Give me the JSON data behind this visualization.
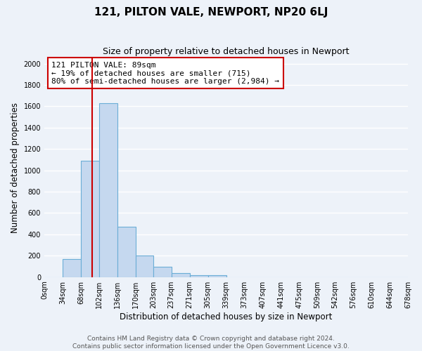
{
  "title": "121, PILTON VALE, NEWPORT, NP20 6LJ",
  "subtitle": "Size of property relative to detached houses in Newport",
  "xlabel": "Distribution of detached houses by size in Newport",
  "ylabel": "Number of detached properties",
  "bar_edges": [
    0,
    34,
    68,
    102,
    136,
    170,
    203,
    237,
    271,
    305,
    339,
    373,
    407,
    441,
    475,
    509,
    542,
    576,
    610,
    644,
    678
  ],
  "bar_values": [
    0,
    170,
    1090,
    1630,
    470,
    200,
    100,
    35,
    20,
    15,
    0,
    0,
    0,
    0,
    0,
    0,
    0,
    0,
    0,
    0
  ],
  "bar_color": "#c5d8ef",
  "bar_edge_color": "#6baed6",
  "vline_x": 89,
  "vline_color": "#cc0000",
  "annotation_text": "121 PILTON VALE: 89sqm\n← 19% of detached houses are smaller (715)\n80% of semi-detached houses are larger (2,984) →",
  "annotation_box_facecolor": "#ffffff",
  "annotation_box_edgecolor": "#cc0000",
  "ylim": [
    0,
    2050
  ],
  "yticks": [
    0,
    200,
    400,
    600,
    800,
    1000,
    1200,
    1400,
    1600,
    1800,
    2000
  ],
  "tick_labels": [
    "0sqm",
    "34sqm",
    "68sqm",
    "102sqm",
    "136sqm",
    "170sqm",
    "203sqm",
    "237sqm",
    "271sqm",
    "305sqm",
    "339sqm",
    "373sqm",
    "407sqm",
    "441sqm",
    "475sqm",
    "509sqm",
    "542sqm",
    "576sqm",
    "610sqm",
    "644sqm",
    "678sqm"
  ],
  "footer_line1": "Contains HM Land Registry data © Crown copyright and database right 2024.",
  "footer_line2": "Contains public sector information licensed under the Open Government Licence v3.0.",
  "bg_color": "#edf2f9",
  "grid_color": "#ffffff",
  "title_fontsize": 11,
  "subtitle_fontsize": 9,
  "axis_label_fontsize": 8.5,
  "tick_fontsize": 7,
  "annotation_fontsize": 8,
  "footer_fontsize": 6.5
}
